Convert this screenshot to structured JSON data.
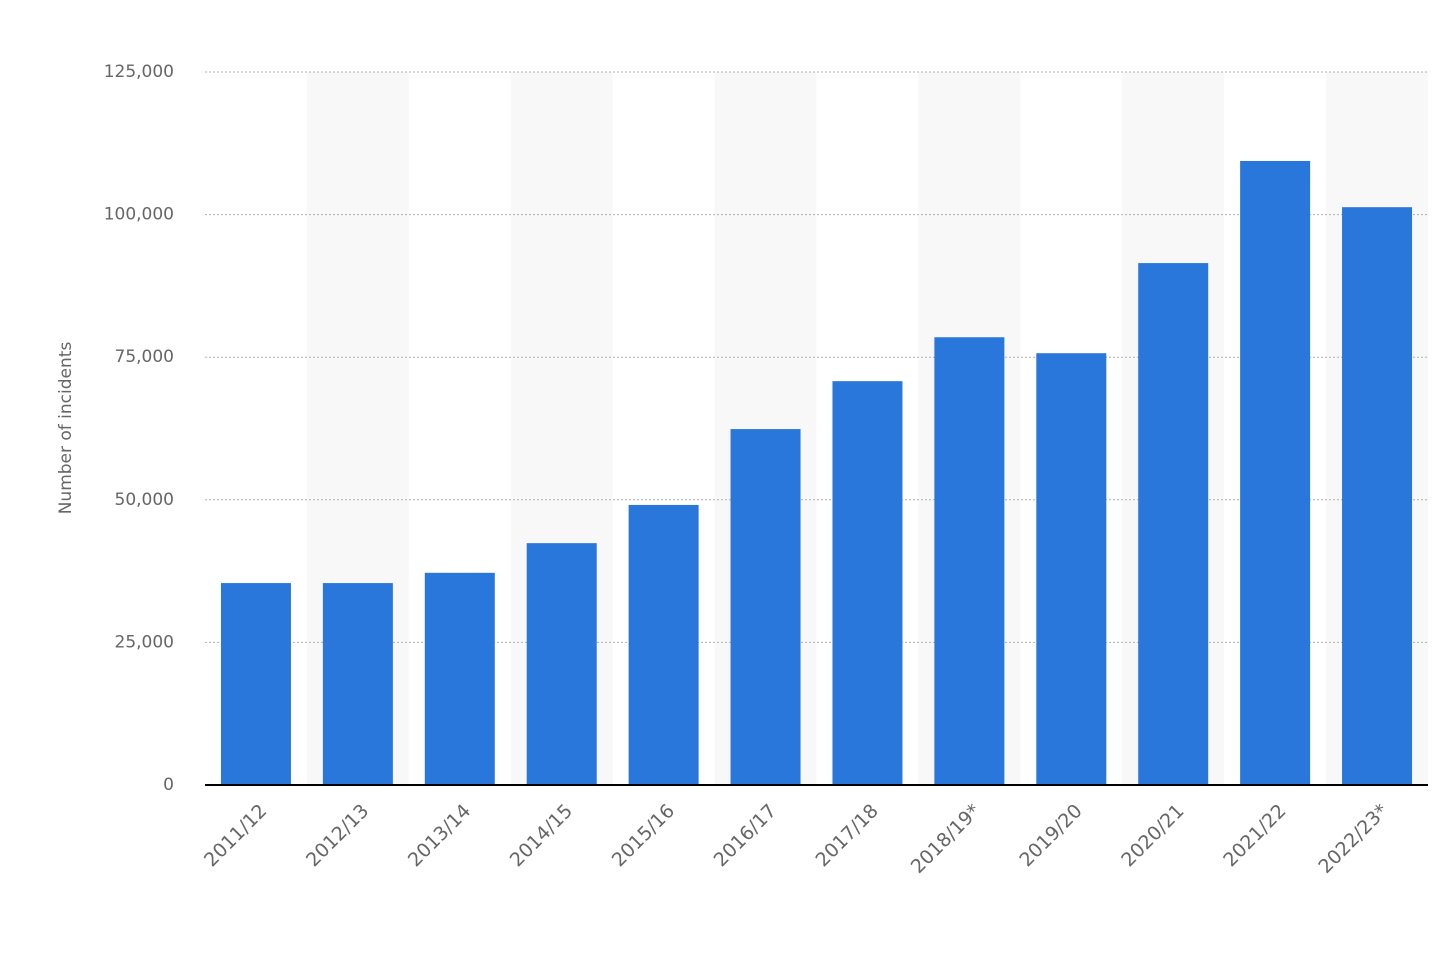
{
  "chart_data": {
    "type": "bar",
    "y_label": "Number of incidents",
    "categories": [
      "2011/12",
      "2012/13",
      "2013/14",
      "2014/15",
      "2015/16",
      "2016/17",
      "2017/18",
      "2018/19*",
      "2019/20",
      "2020/21",
      "2021/22",
      "2022/23*"
    ],
    "values": [
      35400,
      35400,
      37200,
      42400,
      49100,
      62400,
      70800,
      78500,
      75700,
      91500,
      109400,
      101300
    ],
    "color": "#2a77dc",
    "ylim": [
      0,
      125000
    ],
    "yticks": [
      0,
      {
        "value": 25000,
        "label": "25,000"
      },
      {
        "value": 50000,
        "label": "50,000"
      },
      {
        "value": 75000,
        "label": "75,000"
      },
      {
        "value": 100000,
        "label": "100,000"
      },
      {
        "value": 125000,
        "label": "125,000"
      }
    ],
    "grid": true
  }
}
